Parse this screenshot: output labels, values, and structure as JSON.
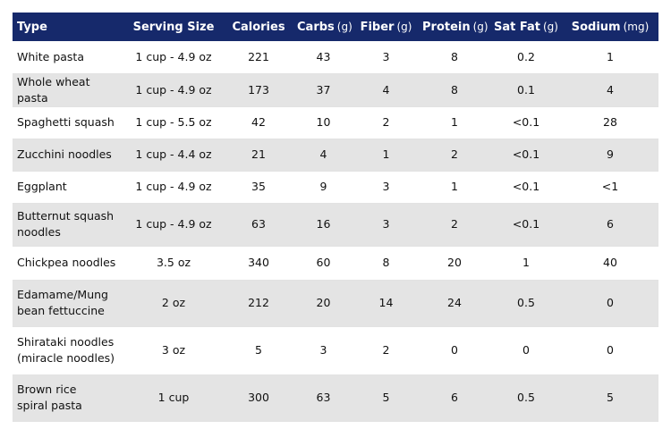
{
  "table": {
    "header": [
      {
        "name": "Type"
      },
      {
        "name": "Serving Size"
      },
      {
        "name": "Calories"
      },
      {
        "name": "Carbs",
        "unit": "(g)"
      },
      {
        "name": "Fiber",
        "unit": "(g)"
      },
      {
        "name": "Protein",
        "unit": "(g)"
      },
      {
        "name": "Sat Fat",
        "unit": "(g)"
      },
      {
        "name": "Sodium",
        "unit": "(mg)"
      }
    ],
    "rows": [
      [
        [
          "White pasta"
        ],
        "1 cup - 4.9 oz",
        "221",
        "43",
        "3",
        "8",
        "0.2",
        "1"
      ],
      [
        [
          "Whole wheat pasta"
        ],
        "1 cup - 4.9 oz",
        "173",
        "37",
        "4",
        "8",
        "0.1",
        "4"
      ],
      [
        [
          "Spaghetti squash"
        ],
        "1 cup - 5.5 oz",
        "42",
        "10",
        "2",
        "1",
        "<0.1",
        "28"
      ],
      [
        [
          "Zucchini noodles"
        ],
        "1 cup - 4.4 oz",
        "21",
        "4",
        "1",
        "2",
        "<0.1",
        "9"
      ],
      [
        [
          "Eggplant"
        ],
        "1 cup - 4.9 oz",
        "35",
        "9",
        "3",
        "1",
        "<0.1",
        "<1"
      ],
      [
        [
          "Butternut squash",
          "noodles"
        ],
        "1 cup - 4.9 oz",
        "63",
        "16",
        "3",
        "2",
        "<0.1",
        "6"
      ],
      [
        [
          "Chickpea noodles"
        ],
        "3.5 oz",
        "340",
        "60",
        "8",
        "20",
        "1",
        "40"
      ],
      [
        [
          "Edamame/Mung",
          "bean fettuccine"
        ],
        "2 oz",
        "212",
        "20",
        "14",
        "24",
        "0.5",
        "0"
      ],
      [
        [
          "Shirataki noodles",
          "(miracle noodles)"
        ],
        "3 oz",
        "5",
        "3",
        "2",
        "0",
        "0",
        "0"
      ],
      [
        [
          "Brown rice",
          "spiral pasta"
        ],
        "1 cup",
        "300",
        "63",
        "5",
        "6",
        "0.5",
        "5"
      ]
    ]
  }
}
